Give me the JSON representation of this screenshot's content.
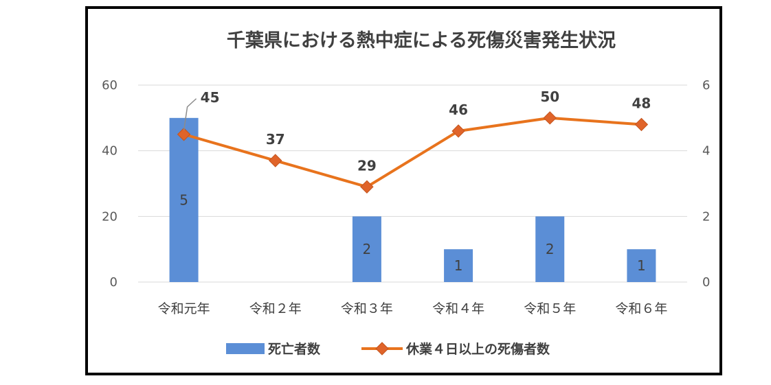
{
  "chart_data": {
    "type": "bar+line",
    "title": "千葉県における熱中症による死傷災害発生状況",
    "categories": [
      "令和元年",
      "令和２年",
      "令和３年",
      "令和４年",
      "令和５年",
      "令和６年"
    ],
    "series": [
      {
        "name": "死亡者数",
        "type": "bar",
        "axis": "right",
        "values": [
          5,
          null,
          2,
          1,
          2,
          1
        ],
        "data_labels": [
          "5",
          "",
          "2",
          "1",
          "2",
          "1"
        ],
        "color": "#5B8ED6"
      },
      {
        "name": "休業４日以上の死傷者数",
        "type": "line",
        "axis": "left",
        "values": [
          45,
          37,
          29,
          46,
          50,
          48
        ],
        "data_labels": [
          "45",
          "37",
          "29",
          "46",
          "50",
          "48"
        ],
        "color": "#E8731D",
        "marker_color": "#E0642A",
        "marker": "diamond"
      }
    ],
    "y_left": {
      "ylim": [
        0,
        60
      ],
      "ticks": [
        "0",
        "20",
        "40",
        "60"
      ]
    },
    "y_right": {
      "ylim": [
        0,
        6
      ],
      "ticks": [
        "0",
        "2",
        "4",
        "6"
      ]
    },
    "grid": true,
    "legend": "bottom",
    "gridline_color": "#D9D9D9"
  }
}
